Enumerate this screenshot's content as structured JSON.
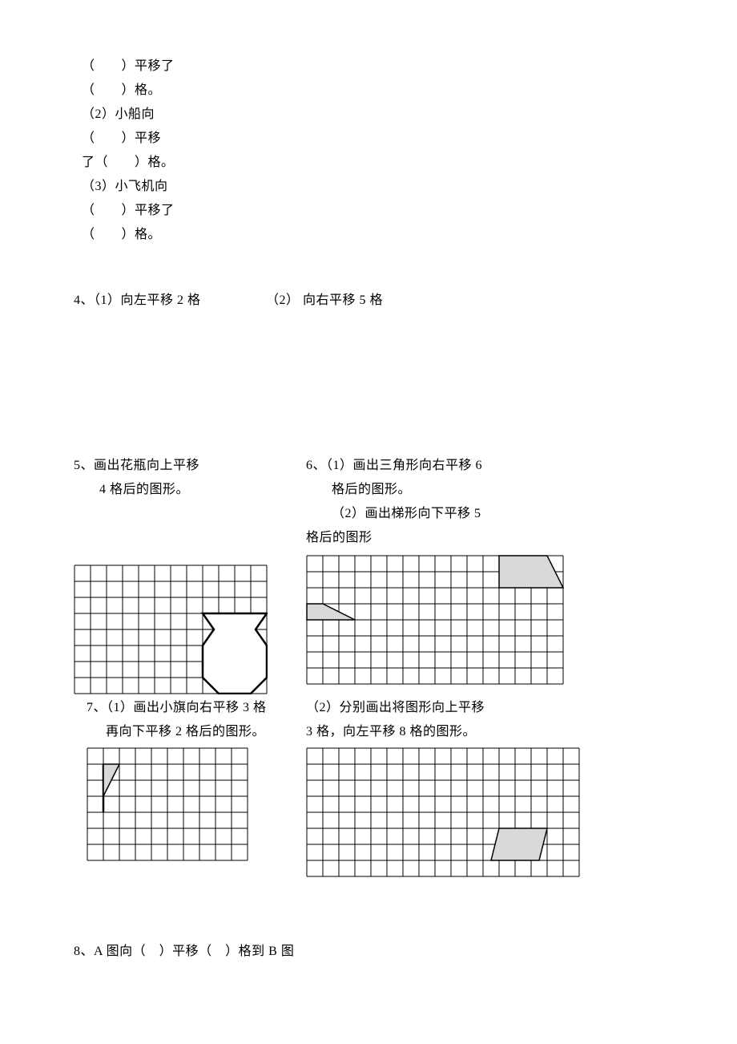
{
  "q_top": {
    "l1": "（　　）平移了",
    "l2": "（　　）格。",
    "l3": "（2）小船向",
    "l4": "（　　）平移",
    "l5": "了（　　）格。",
    "l6": "（3）小飞机向",
    "l7": "（　　）平移了",
    "l8": "（　　）格。"
  },
  "q4": {
    "left": "4、（1）向左平移 2 格",
    "right": "（2）  向右平移 5 格"
  },
  "q5": {
    "l1": "5、画出花瓶向上平移",
    "l2": "4 格后的图形。"
  },
  "q6": {
    "l1": "6、（1）画出三角形向右平移 6",
    "l2": "格后的图形。",
    "l3": "（2）画出梯形向下平移 5",
    "l4": "格后的图形"
  },
  "q7": {
    "left1": "7、（1）画出小旗向右平移 3  格",
    "left2": "再向下平移 2 格后的图形。",
    "right1": "（2）分别画出将图形向上平移",
    "right2": "3 格，向左平移 8 格的图形。"
  },
  "q8": "8、A 图向（　）平移（　）格到 B 图",
  "grid5": {
    "cols": 12,
    "rows": 8,
    "cell": 20,
    "stroke": "#000000",
    "strokeWidth": 1,
    "shape_fill": "#ffffff",
    "shape_stroke": "#000000",
    "shape_strokeWidth": 2.5
  },
  "grid6": {
    "cols": 16,
    "rows": 8,
    "cell": 20,
    "stroke": "#000000",
    "strokeWidth": 1,
    "shape_fill": "#d9d9d9",
    "shape_stroke": "#000000",
    "shape_strokeWidth": 1.5
  },
  "grid7a": {
    "cols": 10,
    "rows": 7,
    "cell": 20,
    "stroke": "#000000",
    "strokeWidth": 1,
    "shape_fill": "#d9d9d9",
    "shape_stroke": "#000000",
    "shape_strokeWidth": 1.5
  },
  "grid7b": {
    "cols": 17,
    "rows": 8,
    "cell": 20,
    "stroke": "#000000",
    "strokeWidth": 1,
    "shape_fill": "#d9d9d9",
    "shape_stroke": "#000000",
    "shape_strokeWidth": 1.5
  }
}
